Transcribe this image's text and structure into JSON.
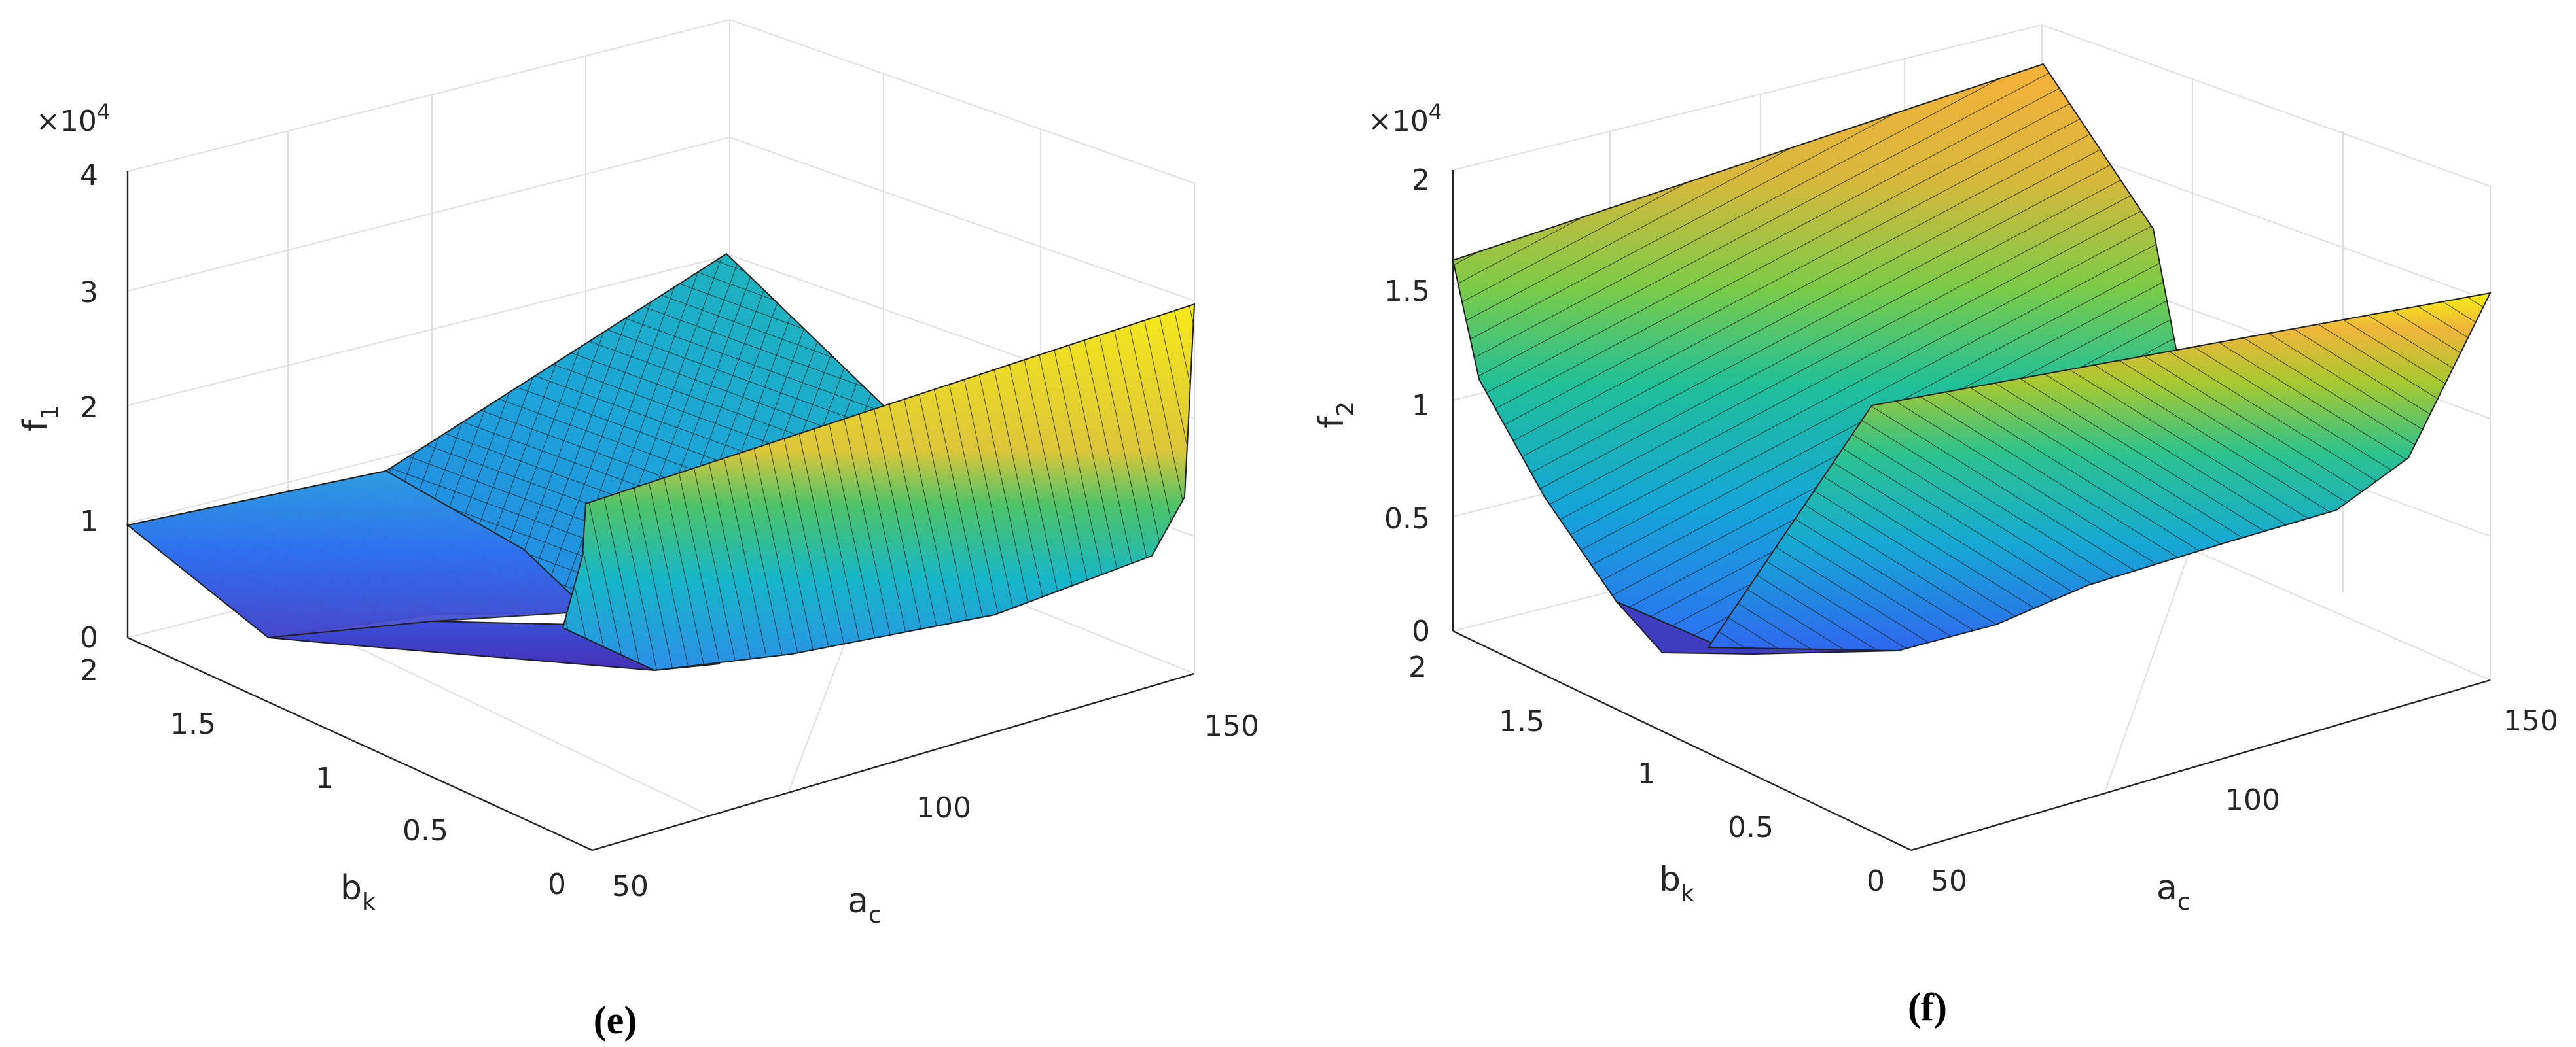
{
  "chart_data": [
    {
      "type": "surface",
      "panel_label": "(e)",
      "zlabel": "f",
      "zlabel_sub": "1",
      "xlabel": "a",
      "xlabel_sub": "c",
      "ylabel": "b",
      "ylabel_sub": "k",
      "z_multiplier": "×10",
      "z_multiplier_exp": "4",
      "xlim": [
        50,
        150
      ],
      "ylim": [
        0,
        2
      ],
      "zlim": [
        0,
        40000
      ],
      "x_ticks": [
        "50",
        "100",
        "150"
      ],
      "y_ticks": [
        "0",
        "0.5",
        "1",
        "1.5",
        "2"
      ],
      "z_ticks": [
        "0",
        "1",
        "2",
        "3",
        "4"
      ],
      "grid": true,
      "colormap": [
        "#3e26a8",
        "#2f70f7",
        "#15b1d1",
        "#2dc48e",
        "#a0c834",
        "#e2b539",
        "#fbd62c",
        "#f9fb0e"
      ],
      "surface_samples": [
        {
          "a_c": 50,
          "b_k": 2,
          "f": 10000
        },
        {
          "a_c": 50,
          "b_k": 0,
          "f": 26000
        },
        {
          "a_c": 70,
          "b_k": 1,
          "f": 500
        },
        {
          "a_c": 150,
          "b_k": 2,
          "f": 16000
        },
        {
          "a_c": 150,
          "b_k": 0,
          "f": 34000
        }
      ]
    },
    {
      "type": "surface",
      "panel_label": "(f)",
      "zlabel": "f",
      "zlabel_sub": "2",
      "xlabel": "a",
      "xlabel_sub": "c",
      "ylabel": "b",
      "ylabel_sub": "k",
      "z_multiplier": "×10",
      "z_multiplier_exp": "4",
      "xlim": [
        50,
        150
      ],
      "ylim": [
        0,
        2
      ],
      "zlim": [
        0,
        20000
      ],
      "x_ticks": [
        "50",
        "100",
        "150"
      ],
      "y_ticks": [
        "0",
        "0.5",
        "1",
        "1.5",
        "2"
      ],
      "z_ticks": [
        "0",
        "0.5",
        "1",
        "1.5",
        "2"
      ],
      "grid": true,
      "colormap": [
        "#3e26a8",
        "#2f70f7",
        "#15b1d1",
        "#2dc48e",
        "#a0c834",
        "#e2b539",
        "#fbd62c",
        "#f9fb0e"
      ],
      "surface_samples": [
        {
          "a_c": 50,
          "b_k": 2,
          "f": 15800
        },
        {
          "a_c": 50,
          "b_k": 0,
          "f": 22000
        },
        {
          "a_c": 60,
          "b_k": 1,
          "f": 300
        },
        {
          "a_c": 150,
          "b_k": 2,
          "f": 9000
        },
        {
          "a_c": 150,
          "b_k": 0,
          "f": 16000
        }
      ]
    }
  ]
}
